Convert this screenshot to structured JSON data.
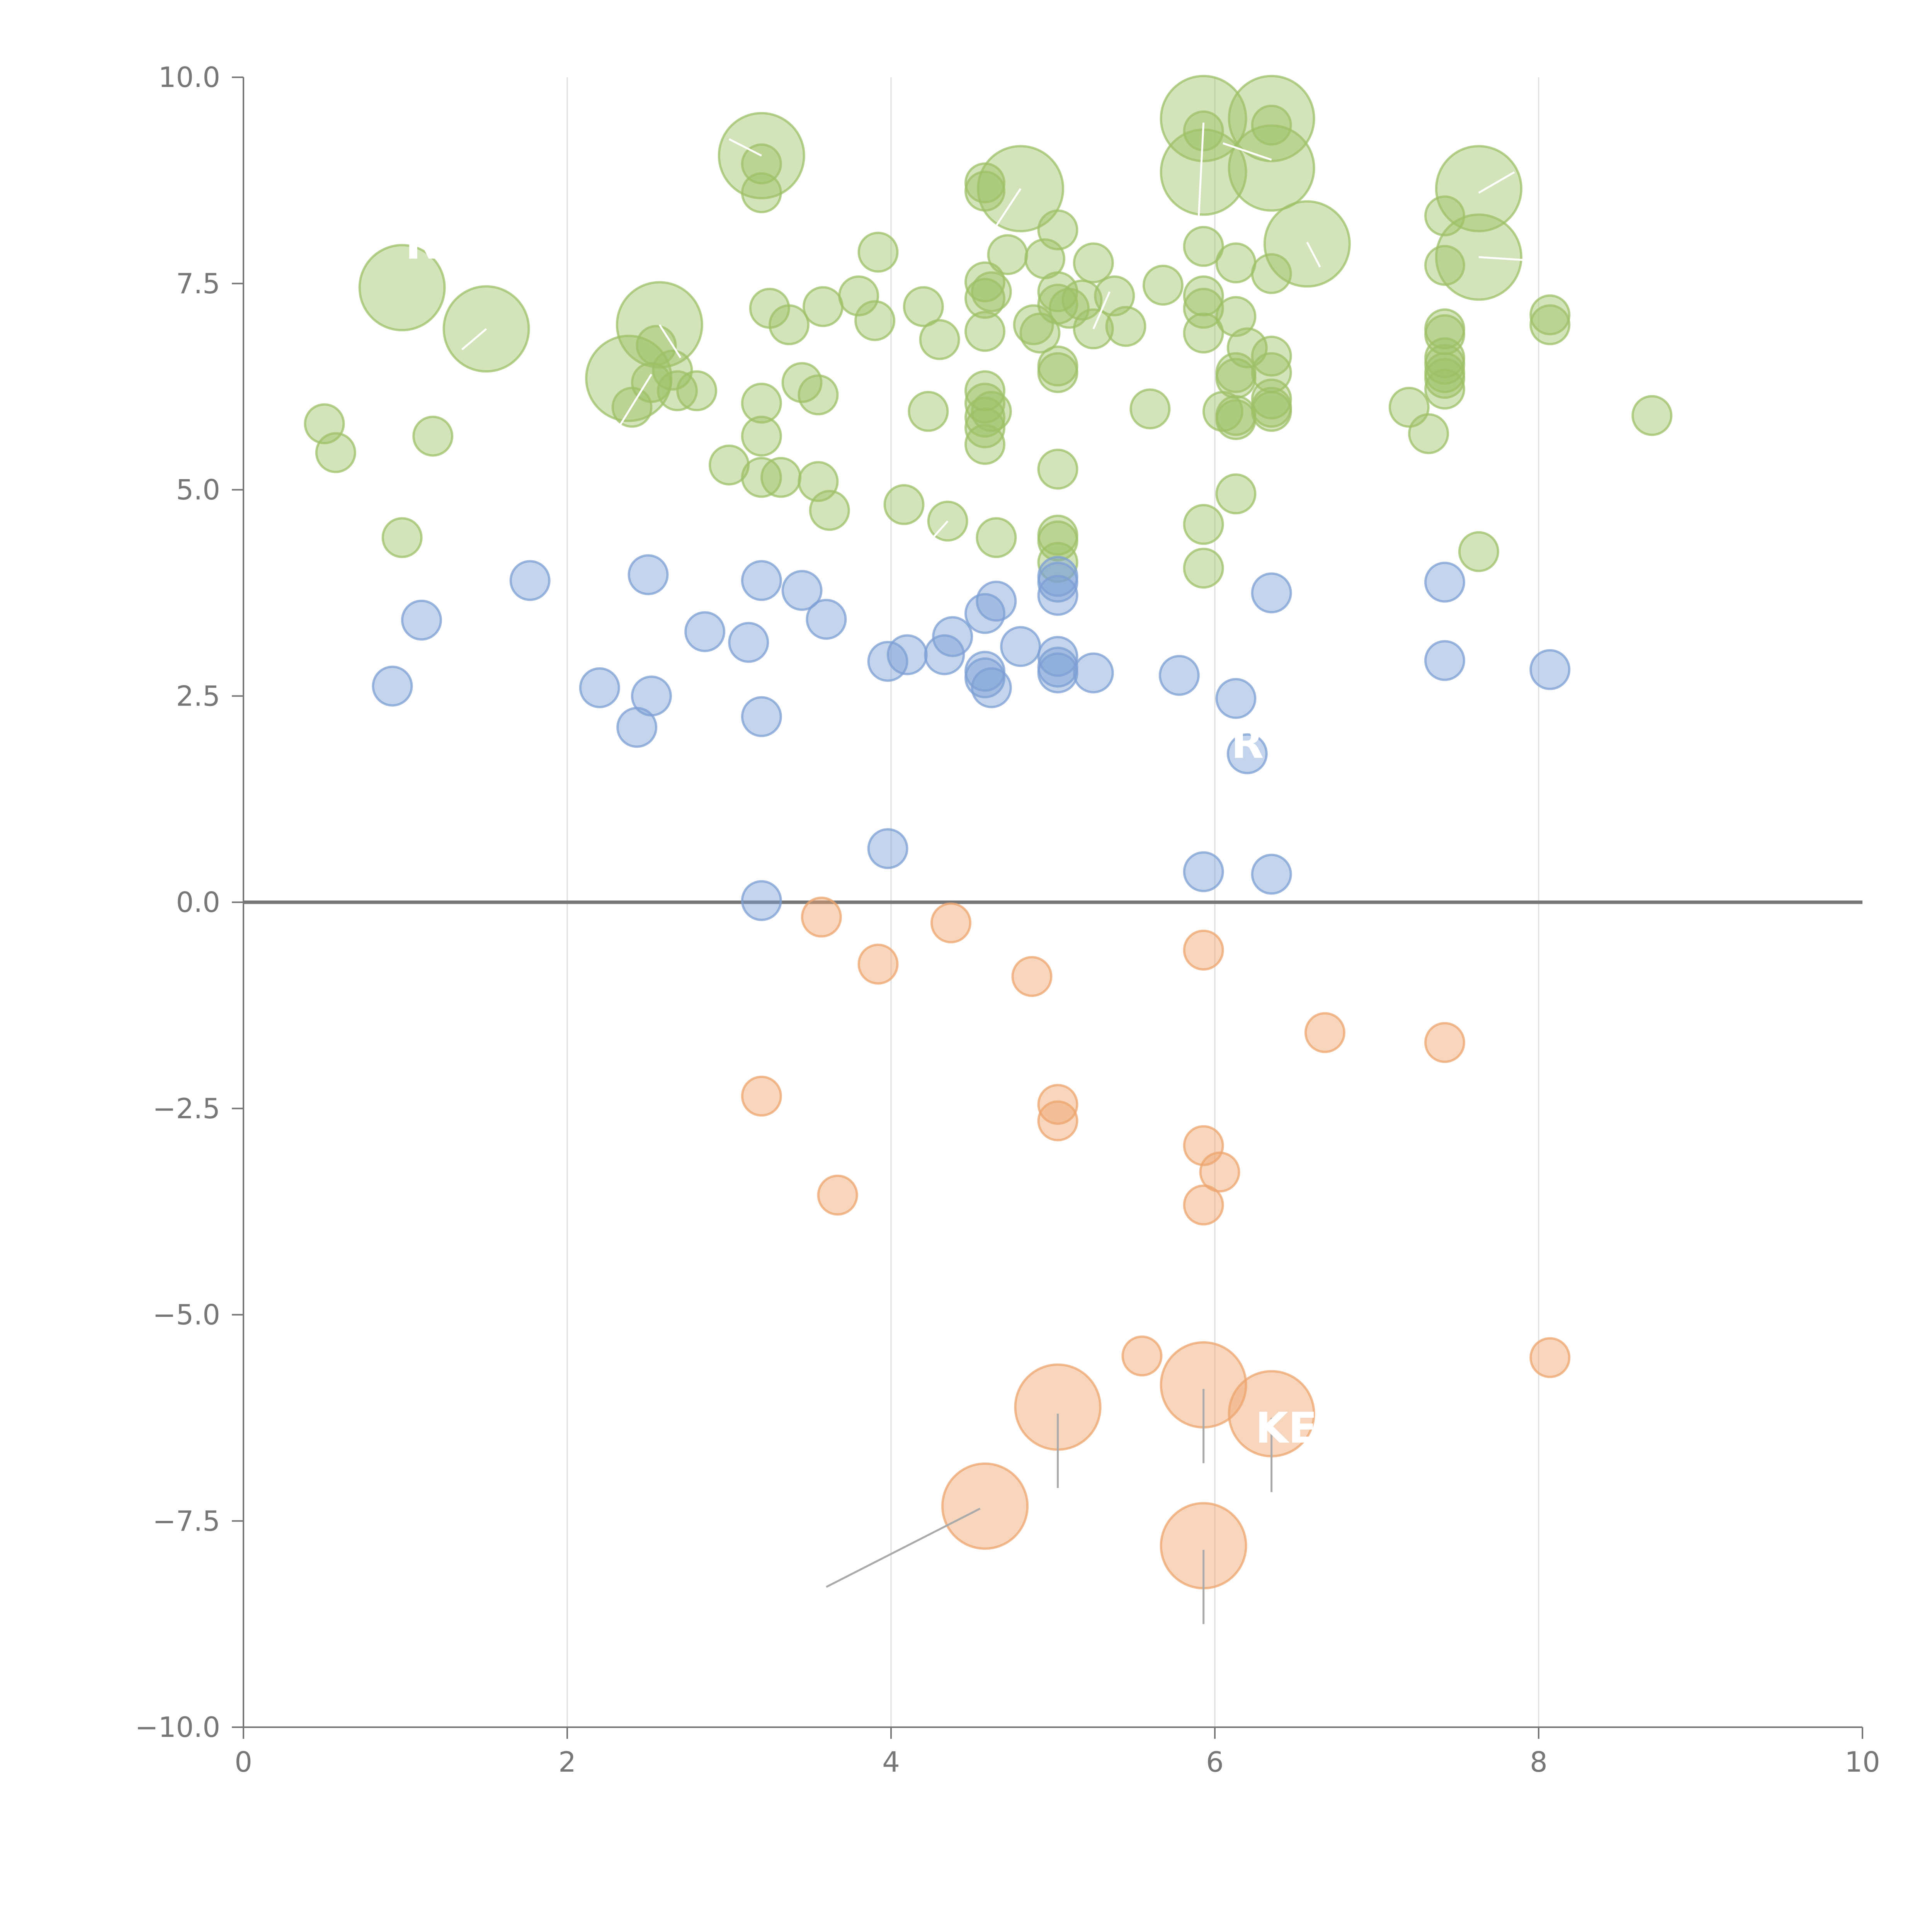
{
  "chart_data": {
    "type": "scatter",
    "title": "",
    "xlabel": "",
    "ylabel": "",
    "xlim": [
      0,
      10
    ],
    "ylim": [
      -10,
      10
    ],
    "x_ticks": [
      "0",
      "2",
      "4",
      "6",
      "8",
      "10"
    ],
    "y_ticks": [
      "−10.0",
      "−7.5",
      "−5.0",
      "−2.5",
      "0.0",
      "2.5",
      "5.0",
      "7.5",
      "10.0"
    ],
    "grid": "vertical",
    "zero_line": true,
    "series": [
      {
        "name": "green",
        "color": "#9dc067",
        "points": [
          {
            "x": 0.5,
            "y": 5.8,
            "s": 1
          },
          {
            "x": 0.57,
            "y": 5.45,
            "s": 1
          },
          {
            "x": 0.98,
            "y": 7.45,
            "s": 2.2
          },
          {
            "x": 0.98,
            "y": 4.42,
            "s": 1
          },
          {
            "x": 1.17,
            "y": 5.65,
            "s": 1
          },
          {
            "x": 1.5,
            "y": 6.95,
            "s": 2.2
          },
          {
            "x": 2.38,
            "y": 6.35,
            "s": 2.2
          },
          {
            "x": 2.4,
            "y": 6.0,
            "s": 1
          },
          {
            "x": 2.52,
            "y": 6.3,
            "s": 1
          },
          {
            "x": 2.57,
            "y": 7.0,
            "s": 2.2
          },
          {
            "x": 2.55,
            "y": 6.75,
            "s": 1
          },
          {
            "x": 2.65,
            "y": 6.45,
            "s": 1
          },
          {
            "x": 2.68,
            "y": 6.2,
            "s": 1
          },
          {
            "x": 2.8,
            "y": 6.2,
            "s": 1
          },
          {
            "x": 3.0,
            "y": 5.3,
            "s": 1
          },
          {
            "x": 3.2,
            "y": 9.05,
            "s": 2.2
          },
          {
            "x": 3.2,
            "y": 8.95,
            "s": 1
          },
          {
            "x": 3.2,
            "y": 8.6,
            "s": 1
          },
          {
            "x": 3.2,
            "y": 6.05,
            "s": 1
          },
          {
            "x": 3.2,
            "y": 5.65,
            "s": 1
          },
          {
            "x": 3.2,
            "y": 5.15,
            "s": 1
          },
          {
            "x": 3.25,
            "y": 7.2,
            "s": 1
          },
          {
            "x": 3.32,
            "y": 5.15,
            "s": 1
          },
          {
            "x": 3.37,
            "y": 7.0,
            "s": 1
          },
          {
            "x": 3.45,
            "y": 6.3,
            "s": 1
          },
          {
            "x": 3.55,
            "y": 6.15,
            "s": 1
          },
          {
            "x": 3.55,
            "y": 5.1,
            "s": 1
          },
          {
            "x": 3.58,
            "y": 7.22,
            "s": 1
          },
          {
            "x": 3.62,
            "y": 4.75,
            "s": 1
          },
          {
            "x": 3.8,
            "y": 7.35,
            "s": 1
          },
          {
            "x": 3.9,
            "y": 7.05,
            "s": 1
          },
          {
            "x": 3.92,
            "y": 7.88,
            "s": 1
          },
          {
            "x": 4.08,
            "y": 4.82,
            "s": 1
          },
          {
            "x": 4.2,
            "y": 7.22,
            "s": 1
          },
          {
            "x": 4.23,
            "y": 5.95,
            "s": 1
          },
          {
            "x": 4.3,
            "y": 6.82,
            "s": 1
          },
          {
            "x": 4.35,
            "y": 4.62,
            "s": 1
          },
          {
            "x": 4.58,
            "y": 8.72,
            "s": 1
          },
          {
            "x": 4.58,
            "y": 8.62,
            "s": 1
          },
          {
            "x": 4.58,
            "y": 7.52,
            "s": 1
          },
          {
            "x": 4.58,
            "y": 7.32,
            "s": 1
          },
          {
            "x": 4.58,
            "y": 6.92,
            "s": 1
          },
          {
            "x": 4.58,
            "y": 6.2,
            "s": 1
          },
          {
            "x": 4.58,
            "y": 6.05,
            "s": 1
          },
          {
            "x": 4.58,
            "y": 5.88,
            "s": 1
          },
          {
            "x": 4.58,
            "y": 5.75,
            "s": 1
          },
          {
            "x": 4.58,
            "y": 5.55,
            "s": 1
          },
          {
            "x": 4.62,
            "y": 7.4,
            "s": 1
          },
          {
            "x": 4.62,
            "y": 5.95,
            "s": 1
          },
          {
            "x": 4.65,
            "y": 4.42,
            "s": 1
          },
          {
            "x": 4.72,
            "y": 7.85,
            "s": 1
          },
          {
            "x": 4.8,
            "y": 8.65,
            "s": 2.2
          },
          {
            "x": 4.88,
            "y": 7.0,
            "s": 1
          },
          {
            "x": 4.92,
            "y": 6.9,
            "s": 1
          },
          {
            "x": 4.95,
            "y": 7.8,
            "s": 1
          },
          {
            "x": 5.03,
            "y": 8.15,
            "s": 1
          },
          {
            "x": 5.03,
            "y": 7.4,
            "s": 1
          },
          {
            "x": 5.03,
            "y": 7.25,
            "s": 1
          },
          {
            "x": 5.03,
            "y": 6.5,
            "s": 1
          },
          {
            "x": 5.03,
            "y": 6.42,
            "s": 1
          },
          {
            "x": 5.03,
            "y": 5.25,
            "s": 1
          },
          {
            "x": 5.03,
            "y": 4.45,
            "s": 1
          },
          {
            "x": 5.03,
            "y": 4.38,
            "s": 1
          },
          {
            "x": 5.03,
            "y": 4.12,
            "s": 1
          },
          {
            "x": 5.1,
            "y": 7.2,
            "s": 1
          },
          {
            "x": 5.18,
            "y": 7.3,
            "s": 1
          },
          {
            "x": 5.25,
            "y": 7.75,
            "s": 1
          },
          {
            "x": 5.25,
            "y": 6.95,
            "s": 1
          },
          {
            "x": 5.38,
            "y": 7.35,
            "s": 1
          },
          {
            "x": 5.45,
            "y": 6.98,
            "s": 1
          },
          {
            "x": 5.6,
            "y": 5.98,
            "s": 1
          },
          {
            "x": 5.68,
            "y": 7.48,
            "s": 1
          },
          {
            "x": 5.93,
            "y": 9.5,
            "s": 2.2
          },
          {
            "x": 5.93,
            "y": 8.85,
            "s": 2.2
          },
          {
            "x": 5.93,
            "y": 9.35,
            "s": 1
          },
          {
            "x": 5.93,
            "y": 7.95,
            "s": 1
          },
          {
            "x": 5.93,
            "y": 7.35,
            "s": 1
          },
          {
            "x": 5.93,
            "y": 7.2,
            "s": 1
          },
          {
            "x": 5.93,
            "y": 6.9,
            "s": 1
          },
          {
            "x": 5.93,
            "y": 4.58,
            "s": 1
          },
          {
            "x": 5.93,
            "y": 4.05,
            "s": 1
          },
          {
            "x": 6.05,
            "y": 5.95,
            "s": 1
          },
          {
            "x": 6.13,
            "y": 7.75,
            "s": 1
          },
          {
            "x": 6.13,
            "y": 7.1,
            "s": 1
          },
          {
            "x": 6.13,
            "y": 6.42,
            "s": 1
          },
          {
            "x": 6.13,
            "y": 6.35,
            "s": 1
          },
          {
            "x": 6.13,
            "y": 5.9,
            "s": 1
          },
          {
            "x": 6.13,
            "y": 5.85,
            "s": 1
          },
          {
            "x": 6.13,
            "y": 4.95,
            "s": 1
          },
          {
            "x": 6.2,
            "y": 6.72,
            "s": 1
          },
          {
            "x": 6.35,
            "y": 9.5,
            "s": 2.2
          },
          {
            "x": 6.35,
            "y": 8.9,
            "s": 2.2
          },
          {
            "x": 6.35,
            "y": 9.42,
            "s": 1
          },
          {
            "x": 6.35,
            "y": 7.62,
            "s": 1
          },
          {
            "x": 6.35,
            "y": 6.62,
            "s": 1
          },
          {
            "x": 6.35,
            "y": 6.42,
            "s": 1
          },
          {
            "x": 6.35,
            "y": 6.1,
            "s": 1
          },
          {
            "x": 6.35,
            "y": 6.0,
            "s": 1
          },
          {
            "x": 6.35,
            "y": 5.95,
            "s": 1
          },
          {
            "x": 6.57,
            "y": 7.98,
            "s": 2.2
          },
          {
            "x": 7.2,
            "y": 6.0,
            "s": 1
          },
          {
            "x": 7.32,
            "y": 5.68,
            "s": 1
          },
          {
            "x": 7.42,
            "y": 8.32,
            "s": 1
          },
          {
            "x": 7.42,
            "y": 7.72,
            "s": 1
          },
          {
            "x": 7.42,
            "y": 6.95,
            "s": 1
          },
          {
            "x": 7.42,
            "y": 6.88,
            "s": 1
          },
          {
            "x": 7.42,
            "y": 6.6,
            "s": 1
          },
          {
            "x": 7.42,
            "y": 6.52,
            "s": 1
          },
          {
            "x": 7.42,
            "y": 6.42,
            "s": 1
          },
          {
            "x": 7.42,
            "y": 6.35,
            "s": 1
          },
          {
            "x": 7.42,
            "y": 6.22,
            "s": 1
          },
          {
            "x": 7.63,
            "y": 8.65,
            "s": 2.2
          },
          {
            "x": 7.63,
            "y": 7.82,
            "s": 2.2
          },
          {
            "x": 7.63,
            "y": 4.25,
            "s": 1
          },
          {
            "x": 8.07,
            "y": 7.12,
            "s": 1
          },
          {
            "x": 8.07,
            "y": 7.0,
            "s": 1
          },
          {
            "x": 8.7,
            "y": 5.9,
            "s": 1
          }
        ]
      },
      {
        "name": "blue",
        "color": "#7c9fd4",
        "points": [
          {
            "x": 0.92,
            "y": 2.62,
            "s": 1
          },
          {
            "x": 1.1,
            "y": 3.42,
            "s": 1
          },
          {
            "x": 1.77,
            "y": 3.9,
            "s": 1
          },
          {
            "x": 2.2,
            "y": 2.6,
            "s": 1
          },
          {
            "x": 2.43,
            "y": 2.12,
            "s": 1
          },
          {
            "x": 2.5,
            "y": 3.97,
            "s": 1
          },
          {
            "x": 2.52,
            "y": 2.5,
            "s": 1
          },
          {
            "x": 2.85,
            "y": 3.28,
            "s": 1
          },
          {
            "x": 3.12,
            "y": 3.15,
            "s": 1
          },
          {
            "x": 3.2,
            "y": 3.9,
            "s": 1
          },
          {
            "x": 3.2,
            "y": 2.25,
            "s": 1
          },
          {
            "x": 3.2,
            "y": 0.02,
            "s": 1
          },
          {
            "x": 3.45,
            "y": 3.78,
            "s": 1
          },
          {
            "x": 3.6,
            "y": 3.43,
            "s": 1
          },
          {
            "x": 3.98,
            "y": 2.92,
            "s": 1
          },
          {
            "x": 3.98,
            "y": 0.65,
            "s": 1
          },
          {
            "x": 4.1,
            "y": 3.0,
            "s": 1
          },
          {
            "x": 4.33,
            "y": 3.0,
            "s": 1
          },
          {
            "x": 4.38,
            "y": 3.22,
            "s": 1
          },
          {
            "x": 4.58,
            "y": 3.5,
            "s": 1
          },
          {
            "x": 4.58,
            "y": 2.8,
            "s": 1
          },
          {
            "x": 4.58,
            "y": 2.72,
            "s": 1
          },
          {
            "x": 4.62,
            "y": 2.6,
            "s": 1
          },
          {
            "x": 4.65,
            "y": 3.65,
            "s": 1
          },
          {
            "x": 4.8,
            "y": 3.1,
            "s": 1
          },
          {
            "x": 5.03,
            "y": 3.95,
            "s": 1
          },
          {
            "x": 5.03,
            "y": 3.88,
            "s": 1
          },
          {
            "x": 5.03,
            "y": 3.72,
            "s": 1
          },
          {
            "x": 5.03,
            "y": 2.98,
            "s": 1
          },
          {
            "x": 5.03,
            "y": 2.85,
            "s": 1
          },
          {
            "x": 5.03,
            "y": 2.78,
            "s": 1
          },
          {
            "x": 5.25,
            "y": 2.78,
            "s": 1
          },
          {
            "x": 5.78,
            "y": 2.75,
            "s": 1
          },
          {
            "x": 5.93,
            "y": 0.37,
            "s": 1
          },
          {
            "x": 6.13,
            "y": 2.47,
            "s": 1
          },
          {
            "x": 6.2,
            "y": 1.8,
            "s": 1
          },
          {
            "x": 6.35,
            "y": 3.75,
            "s": 1
          },
          {
            "x": 6.35,
            "y": 0.34,
            "s": 1
          },
          {
            "x": 7.42,
            "y": 3.88,
            "s": 1
          },
          {
            "x": 7.42,
            "y": 2.93,
            "s": 1
          },
          {
            "x": 8.07,
            "y": 2.82,
            "s": 1
          }
        ]
      },
      {
        "name": "orange",
        "color": "#eda46d",
        "points": [
          {
            "x": 3.2,
            "y": -2.35,
            "s": 1
          },
          {
            "x": 3.57,
            "y": -0.18,
            "s": 1
          },
          {
            "x": 3.67,
            "y": -3.55,
            "s": 1
          },
          {
            "x": 3.92,
            "y": -0.75,
            "s": 1
          },
          {
            "x": 4.37,
            "y": -0.25,
            "s": 1
          },
          {
            "x": 4.58,
            "y": -7.32,
            "s": 2.2
          },
          {
            "x": 4.87,
            "y": -0.9,
            "s": 1
          },
          {
            "x": 5.03,
            "y": -2.45,
            "s": 1
          },
          {
            "x": 5.03,
            "y": -2.65,
            "s": 1
          },
          {
            "x": 5.03,
            "y": -6.12,
            "s": 2.2
          },
          {
            "x": 5.55,
            "y": -5.5,
            "s": 1
          },
          {
            "x": 5.93,
            "y": -0.58,
            "s": 1
          },
          {
            "x": 5.93,
            "y": -2.95,
            "s": 1
          },
          {
            "x": 5.93,
            "y": -3.67,
            "s": 1
          },
          {
            "x": 5.93,
            "y": -5.85,
            "s": 2.2
          },
          {
            "x": 5.93,
            "y": -7.8,
            "s": 2.2
          },
          {
            "x": 6.03,
            "y": -3.27,
            "s": 1
          },
          {
            "x": 6.35,
            "y": -6.2,
            "s": 2.2
          },
          {
            "x": 6.68,
            "y": -1.58,
            "s": 1
          },
          {
            "x": 7.42,
            "y": -1.7,
            "s": 1
          },
          {
            "x": 8.07,
            "y": -5.52,
            "s": 1
          }
        ]
      }
    ],
    "annotations": [
      {
        "text": "RK",
        "x": 1.0,
        "y": 7.8,
        "color": "#ffffff"
      },
      {
        "text": "R",
        "x": 6.1,
        "y": 1.75,
        "color": "#ffffff"
      },
      {
        "text": "KE",
        "x": 6.25,
        "y": -6.55,
        "color": "#ffffff"
      }
    ],
    "leader_lines": [
      {
        "x1": 4.55,
        "y1": -7.35,
        "x2": 3.6,
        "y2": -8.3,
        "color": "#aaaaaa"
      },
      {
        "x1": 5.03,
        "y1": -6.2,
        "x2": 5.03,
        "y2": -7.1,
        "color": "#aaaaaa"
      },
      {
        "x1": 5.93,
        "y1": -5.9,
        "x2": 5.93,
        "y2": -6.8,
        "color": "#aaaaaa"
      },
      {
        "x1": 6.35,
        "y1": -6.25,
        "x2": 6.35,
        "y2": -7.15,
        "color": "#aaaaaa"
      },
      {
        "x1": 5.93,
        "y1": -7.85,
        "x2": 5.93,
        "y2": -8.75,
        "color": "#aaaaaa"
      },
      {
        "x1": 2.52,
        "y1": 6.4,
        "x2": 2.3,
        "y2": 5.7,
        "color": "#ffffff"
      },
      {
        "x1": 5.93,
        "y1": 9.45,
        "x2": 5.9,
        "y2": 8.3,
        "color": "#ffffff"
      },
      {
        "x1": 6.35,
        "y1": 9.0,
        "x2": 6.05,
        "y2": 9.2,
        "color": "#ffffff"
      },
      {
        "x1": 6.57,
        "y1": 8.0,
        "x2": 6.65,
        "y2": 7.7,
        "color": "#ffffff"
      },
      {
        "x1": 7.63,
        "y1": 8.6,
        "x2": 7.85,
        "y2": 8.85,
        "color": "#ffffff"
      },
      {
        "x1": 7.63,
        "y1": 7.82,
        "x2": 7.95,
        "y2": 7.78,
        "color": "#ffffff"
      },
      {
        "x1": 1.5,
        "y1": 6.95,
        "x2": 1.35,
        "y2": 6.7,
        "color": "#ffffff"
      },
      {
        "x1": 4.8,
        "y1": 8.65,
        "x2": 4.65,
        "y2": 8.2,
        "color": "#ffffff"
      },
      {
        "x1": 3.2,
        "y1": 9.05,
        "x2": 3.0,
        "y2": 9.25,
        "color": "#ffffff"
      },
      {
        "x1": 2.57,
        "y1": 7.0,
        "x2": 2.7,
        "y2": 6.6,
        "color": "#ffffff"
      },
      {
        "x1": 4.35,
        "y1": 4.62,
        "x2": 4.25,
        "y2": 4.4,
        "color": "#ffffff"
      },
      {
        "x1": 5.25,
        "y1": 6.95,
        "x2": 5.35,
        "y2": 7.4,
        "color": "#ffffff"
      }
    ]
  }
}
